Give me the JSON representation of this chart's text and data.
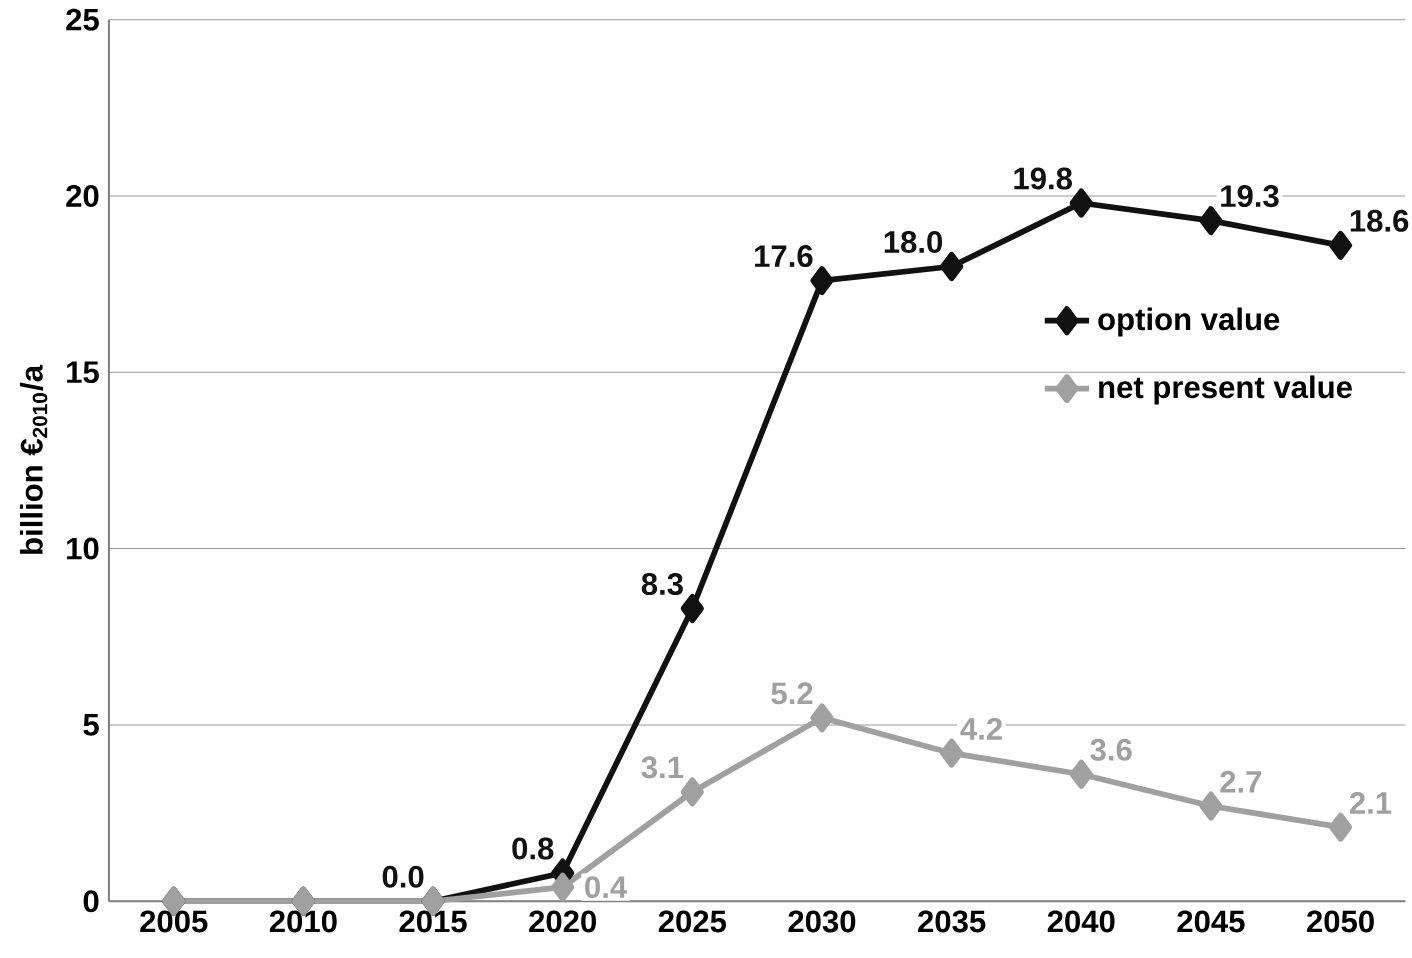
{
  "chart_data": {
    "type": "line",
    "ylabel": "billion €$_{2010}$/a",
    "categories": [
      "2005",
      "2010",
      "2015",
      "2020",
      "2025",
      "2030",
      "2035",
      "2040",
      "2045",
      "2050"
    ],
    "series": [
      {
        "name": "option value",
        "color": "#111111",
        "values": [
          0,
          0,
          0,
          0.8,
          8.3,
          17.6,
          18.0,
          19.8,
          19.3,
          18.6
        ],
        "value_labels": [
          null,
          null,
          "0.0",
          "0.8",
          "8.3",
          "17.6",
          "18.0",
          "19.8",
          "19.3",
          "18.6"
        ]
      },
      {
        "name": "net present value",
        "color": "#a0a0a0",
        "values": [
          0,
          0,
          0,
          0.4,
          3.1,
          5.2,
          4.2,
          3.6,
          2.7,
          2.1
        ],
        "value_labels": [
          null,
          null,
          null,
          "0.4",
          "3.1",
          "5.2",
          "4.2",
          "3.6",
          "2.7",
          "2.1"
        ]
      }
    ],
    "ylim": [
      0,
      25
    ],
    "yticks": [
      0,
      5,
      10,
      15,
      20,
      25
    ],
    "grid": "y",
    "legend": "right",
    "marker": "diamond",
    "line_style": "solid"
  }
}
